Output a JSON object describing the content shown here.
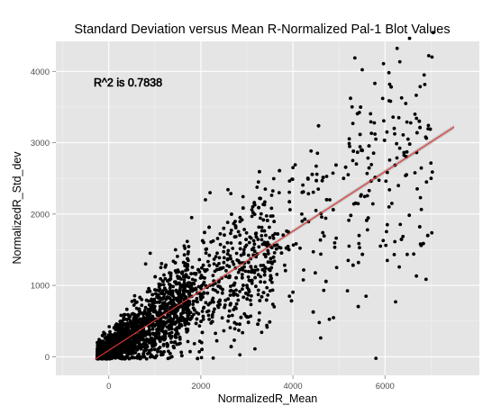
{
  "chart_data": {
    "type": "scatter",
    "title": "Standard Deviation versus Mean R-Normalized Pal-1 Blot Values",
    "xlabel": "NormalizedR_Mean",
    "ylabel": "NormalizedR_Std_dev",
    "xlim": [
      -1150,
      8050
    ],
    "ylim": [
      -260,
      4420
    ],
    "xticks": [
      0,
      2000,
      4000,
      6000
    ],
    "yticks": [
      0,
      1000,
      2000,
      3000,
      4000
    ],
    "x_tick_labels": [
      "0",
      "2000",
      "4000",
      "6000"
    ],
    "y_tick_labels": [
      "0",
      "1000",
      "2000",
      "3000",
      "4000"
    ],
    "grid": true,
    "annotation": "R^2 is  0.7838",
    "annotation_position": "top-left",
    "fit_line": {
      "x": [
        -300,
        7500
      ],
      "y": [
        -35,
        3220
      ],
      "color": "#e53935"
    },
    "points": {
      "description_note": "",
      "sample": [
        [
          6950,
          4220
        ],
        [
          7020,
          4200
        ],
        [
          6850,
          3950
        ],
        [
          6100,
          3820
        ],
        [
          5950,
          3620
        ],
        [
          6300,
          3350
        ],
        [
          6650,
          3400
        ],
        [
          6450,
          3550
        ],
        [
          6200,
          3200
        ],
        [
          5800,
          3050
        ],
        [
          6500,
          3050
        ],
        [
          5500,
          2900
        ],
        [
          5300,
          2750
        ],
        [
          5100,
          2500
        ],
        [
          4800,
          2200
        ],
        [
          4500,
          2050
        ],
        [
          4200,
          1900
        ],
        [
          3900,
          1750
        ],
        [
          3500,
          1550
        ],
        [
          3200,
          1400
        ],
        [
          6900,
          2450
        ],
        [
          7000,
          2500
        ],
        [
          6150,
          2150
        ],
        [
          6050,
          1850
        ],
        [
          5900,
          1550
        ],
        [
          6050,
          1350
        ],
        [
          5200,
          1350
        ],
        [
          4950,
          1250
        ],
        [
          3400,
          2350
        ],
        [
          3250,
          2450
        ],
        [
          2200,
          2300
        ],
        [
          2100,
          2200
        ],
        [
          1800,
          1950
        ],
        [
          800,
          1300
        ],
        [
          1450,
          1500
        ],
        [
          900,
          1450
        ],
        [
          4000,
          2650
        ],
        [
          3700,
          2300
        ],
        [
          3000,
          1000
        ],
        [
          3250,
          1150
        ]
      ]
    }
  },
  "colors": {
    "panel": "#e5e5e5",
    "grid_major": "#ffffff",
    "grid_minor": "#f2f2f2",
    "points": "#000000",
    "fit_line": "#e53935",
    "fit_band": "#9e9e9e"
  }
}
